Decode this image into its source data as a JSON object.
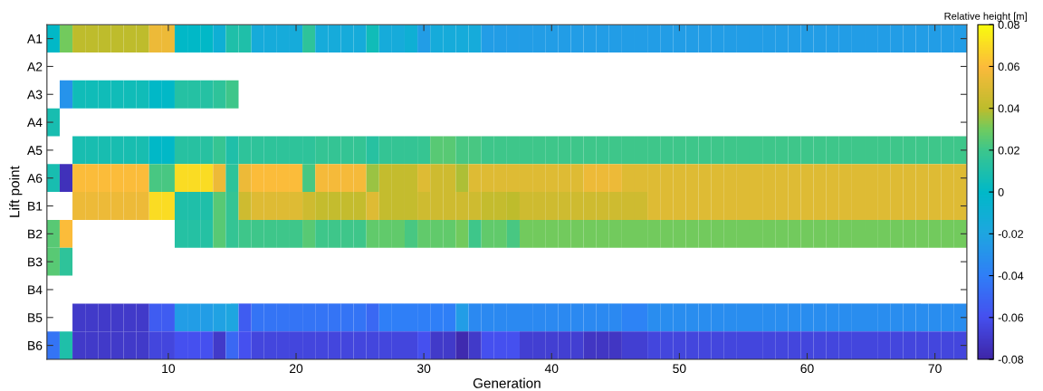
{
  "chart_data": {
    "type": "heatmap",
    "xlabel": "Generation",
    "ylabel": "Lift point",
    "clabel": "Relative height [m]",
    "x": [
      1,
      2,
      3,
      4,
      5,
      6,
      7,
      8,
      9,
      10,
      11,
      12,
      13,
      14,
      15,
      16,
      17,
      18,
      19,
      20,
      21,
      22,
      23,
      24,
      25,
      26,
      27,
      28,
      29,
      30,
      31,
      32,
      33,
      34,
      35,
      36,
      37,
      38,
      39,
      40,
      41,
      42,
      43,
      44,
      45,
      46,
      47,
      48,
      49,
      50,
      51,
      52,
      53,
      54,
      55,
      56,
      57,
      58,
      59,
      60,
      61,
      62,
      63,
      64,
      65,
      66,
      67,
      68,
      69,
      70,
      71,
      72
    ],
    "xlim": [
      0.5,
      72.5
    ],
    "xticks": [
      10,
      20,
      30,
      40,
      50,
      60,
      70
    ],
    "y_categories": [
      "A1",
      "A2",
      "A3",
      "A4",
      "A5",
      "A6",
      "B1",
      "B2",
      "B3",
      "B4",
      "B5",
      "B6"
    ],
    "clim": [
      -0.08,
      0.08
    ],
    "cticks": [
      -0.08,
      -0.06,
      -0.04,
      -0.02,
      0,
      0.02,
      0.04,
      0.06,
      0.08
    ],
    "cells": [
      [
        0,
        0.03,
        0.04,
        0.04,
        0.04,
        0.04,
        0.04,
        0.04,
        0.055,
        0.055,
        0,
        0,
        0,
        -0.01,
        0.01,
        0.01,
        -0.015,
        -0.015,
        -0.015,
        -0.015,
        0.015,
        -0.015,
        -0.015,
        -0.015,
        -0.015,
        0.005,
        -0.015,
        -0.015,
        -0.01,
        -0.025,
        -0.015,
        -0.015,
        -0.015,
        -0.015,
        -0.025,
        -0.025,
        -0.025,
        -0.025,
        -0.025,
        -0.025,
        -0.025,
        -0.025,
        -0.025,
        -0.025,
        -0.025,
        -0.025,
        -0.025,
        -0.025,
        -0.025,
        -0.025,
        -0.025,
        -0.025,
        -0.025,
        -0.025,
        -0.025,
        -0.025,
        -0.025,
        -0.025,
        -0.025,
        -0.025,
        -0.025,
        -0.025,
        -0.025,
        -0.025,
        -0.025,
        -0.025,
        -0.025,
        -0.025,
        -0.025,
        -0.025,
        -0.025,
        -0.025
      ],
      [
        null,
        null,
        null,
        null,
        null,
        null,
        null,
        null,
        null,
        null,
        null,
        null,
        null,
        null,
        null,
        null,
        null,
        null,
        null,
        null,
        null,
        null,
        null,
        null,
        null,
        null,
        null,
        null,
        null,
        null,
        null,
        null,
        null,
        null,
        null,
        null,
        null,
        null,
        null,
        null,
        null,
        null,
        null,
        null,
        null,
        null,
        null,
        null,
        null,
        null,
        null,
        null,
        null,
        null,
        null,
        null,
        null,
        null,
        null,
        null,
        null,
        null,
        null,
        null,
        null,
        null,
        null,
        null,
        null,
        null,
        null,
        null
      ],
      [
        null,
        -0.03,
        0.005,
        0.005,
        0.005,
        0.005,
        0.005,
        0.005,
        0,
        0,
        0.012,
        0.012,
        0.012,
        0.015,
        0.02,
        null,
        null,
        null,
        null,
        null,
        null,
        null,
        null,
        null,
        null,
        null,
        null,
        null,
        null,
        null,
        null,
        null,
        null,
        null,
        null,
        null,
        null,
        null,
        null,
        null,
        null,
        null,
        null,
        null,
        null,
        null,
        null,
        null,
        null,
        null,
        null,
        null,
        null,
        null,
        null,
        null,
        null,
        null,
        null,
        null,
        null,
        null,
        null,
        null,
        null,
        null,
        null,
        null,
        null,
        null,
        null,
        null
      ],
      [
        0.008,
        null,
        null,
        null,
        null,
        null,
        null,
        null,
        null,
        null,
        null,
        null,
        null,
        null,
        null,
        null,
        null,
        null,
        null,
        null,
        null,
        null,
        null,
        null,
        null,
        null,
        null,
        null,
        null,
        null,
        null,
        null,
        null,
        null,
        null,
        null,
        null,
        null,
        null,
        null,
        null,
        null,
        null,
        null,
        null,
        null,
        null,
        null,
        null,
        null,
        null,
        null,
        null,
        null,
        null,
        null,
        null,
        null,
        null,
        null,
        null,
        null,
        null,
        null,
        null,
        null,
        null,
        null,
        null,
        null,
        null,
        null
      ],
      [
        null,
        null,
        0.008,
        0.008,
        0.008,
        0.008,
        0.008,
        0.008,
        0,
        0,
        0.013,
        0.013,
        0.013,
        0.018,
        0.01,
        0.015,
        0.015,
        0.015,
        0.015,
        0.015,
        0.015,
        0.017,
        0.017,
        0.017,
        0.017,
        0.013,
        0.017,
        0.017,
        0.017,
        0.018,
        0.025,
        0.025,
        0.022,
        0.022,
        0.02,
        0.02,
        0.02,
        0.02,
        0.02,
        0.02,
        0.02,
        0.02,
        0.02,
        0.02,
        0.02,
        0.02,
        0.02,
        0.02,
        0.02,
        0.02,
        0.02,
        0.02,
        0.02,
        0.02,
        0.02,
        0.02,
        0.02,
        0.02,
        0.02,
        0.02,
        0.02,
        0.02,
        0.02,
        0.02,
        0.02,
        0.02,
        0.02,
        0.02,
        0.02,
        0.02,
        0.02,
        0.02
      ],
      [
        0.008,
        -0.075,
        0.06,
        0.06,
        0.06,
        0.06,
        0.06,
        0.06,
        0.022,
        0.022,
        0.07,
        0.07,
        0.07,
        0.055,
        0.015,
        0.055,
        0.06,
        0.06,
        0.06,
        0.06,
        0.022,
        0.058,
        0.058,
        0.058,
        0.058,
        0.035,
        0.042,
        0.042,
        0.042,
        0.05,
        0.045,
        0.045,
        0.038,
        0.05,
        0.05,
        0.05,
        0.05,
        0.05,
        0.05,
        0.05,
        0.05,
        0.05,
        0.055,
        0.055,
        0.055,
        0.05,
        0.05,
        0.05,
        0.05,
        0.05,
        0.05,
        0.05,
        0.05,
        0.05,
        0.05,
        0.05,
        0.05,
        0.05,
        0.05,
        0.05,
        0.05,
        0.05,
        0.05,
        0.05,
        0.05,
        0.05,
        0.05,
        0.05,
        0.05,
        0.05,
        0.05,
        0.05
      ],
      [
        null,
        null,
        0.055,
        0.055,
        0.055,
        0.055,
        0.055,
        0.055,
        0.07,
        0.07,
        0.01,
        0.01,
        0.01,
        0.025,
        0.017,
        0.045,
        0.05,
        0.05,
        0.05,
        0.05,
        0.045,
        0.042,
        0.042,
        0.042,
        0.042,
        0.05,
        0.042,
        0.042,
        0.042,
        0.045,
        0.045,
        0.045,
        0.045,
        0.045,
        0.042,
        0.042,
        0.04,
        0.045,
        0.045,
        0.045,
        0.045,
        0.045,
        0.045,
        0.045,
        0.045,
        0.045,
        0.045,
        0.05,
        0.05,
        0.05,
        0.05,
        0.05,
        0.05,
        0.05,
        0.05,
        0.05,
        0.05,
        0.05,
        0.05,
        0.05,
        0.05,
        0.05,
        0.05,
        0.05,
        0.05,
        0.05,
        0.05,
        0.05,
        0.05,
        0.05,
        0.05,
        0.05
      ],
      [
        0.025,
        0.06,
        null,
        null,
        null,
        null,
        null,
        null,
        null,
        null,
        0.012,
        0.012,
        0.012,
        0.025,
        0.017,
        0.02,
        0.02,
        0.02,
        0.02,
        0.02,
        0.025,
        0.02,
        0.02,
        0.02,
        0.02,
        0.027,
        0.027,
        0.027,
        0.022,
        0.027,
        0.027,
        0.027,
        0.03,
        0.02,
        0.027,
        0.027,
        0.022,
        0.03,
        0.03,
        0.03,
        0.03,
        0.03,
        0.03,
        0.03,
        0.03,
        0.03,
        0.03,
        0.03,
        0.03,
        0.03,
        0.03,
        0.03,
        0.03,
        0.03,
        0.03,
        0.03,
        0.03,
        0.03,
        0.03,
        0.03,
        0.03,
        0.03,
        0.03,
        0.03,
        0.03,
        0.03,
        0.03,
        0.03,
        0.03,
        0.03,
        0.03,
        0.03
      ],
      [
        0.025,
        0.015,
        null,
        null,
        null,
        null,
        null,
        null,
        null,
        null,
        null,
        null,
        null,
        null,
        null,
        null,
        null,
        null,
        null,
        null,
        null,
        null,
        null,
        null,
        null,
        null,
        null,
        null,
        null,
        null,
        null,
        null,
        null,
        null,
        null,
        null,
        null,
        null,
        null,
        null,
        null,
        null,
        null,
        null,
        null,
        null,
        null,
        null,
        null,
        null,
        null,
        null,
        null,
        null,
        null,
        null,
        null,
        null,
        null,
        null,
        null,
        null,
        null,
        null,
        null,
        null,
        null,
        null,
        null,
        null,
        null,
        null
      ],
      [
        null,
        null,
        null,
        null,
        null,
        null,
        null,
        null,
        null,
        null,
        null,
        null,
        null,
        null,
        null,
        null,
        null,
        null,
        null,
        null,
        null,
        null,
        null,
        null,
        null,
        null,
        null,
        null,
        null,
        null,
        null,
        null,
        null,
        null,
        null,
        null,
        null,
        null,
        null,
        null,
        null,
        null,
        null,
        null,
        null,
        null,
        null,
        null,
        null,
        null,
        null,
        null,
        null,
        null,
        null,
        null,
        null,
        null,
        null,
        null,
        null,
        null,
        null,
        null,
        null,
        null,
        null,
        null,
        null,
        null,
        null,
        null
      ],
      [
        null,
        null,
        -0.07,
        -0.07,
        -0.07,
        -0.07,
        -0.07,
        -0.07,
        -0.055,
        -0.055,
        -0.025,
        -0.025,
        -0.025,
        -0.022,
        -0.02,
        -0.055,
        -0.045,
        -0.045,
        -0.045,
        -0.045,
        -0.045,
        -0.045,
        -0.045,
        -0.045,
        -0.045,
        -0.05,
        -0.04,
        -0.04,
        -0.04,
        -0.04,
        -0.04,
        -0.04,
        -0.025,
        -0.035,
        -0.035,
        -0.035,
        -0.035,
        -0.035,
        -0.035,
        -0.035,
        -0.035,
        -0.035,
        -0.035,
        -0.035,
        -0.035,
        -0.038,
        -0.038,
        -0.033,
        -0.033,
        -0.033,
        -0.033,
        -0.033,
        -0.033,
        -0.033,
        -0.033,
        -0.033,
        -0.033,
        -0.033,
        -0.033,
        -0.033,
        -0.033,
        -0.033,
        -0.033,
        -0.033,
        -0.033,
        -0.033,
        -0.033,
        -0.033,
        -0.033,
        -0.033,
        -0.033,
        -0.033
      ],
      [
        -0.045,
        0.01,
        -0.07,
        -0.07,
        -0.07,
        -0.07,
        -0.07,
        -0.07,
        -0.065,
        -0.065,
        -0.06,
        -0.06,
        -0.06,
        -0.07,
        -0.05,
        -0.06,
        -0.065,
        -0.065,
        -0.065,
        -0.065,
        -0.065,
        -0.065,
        -0.065,
        -0.065,
        -0.065,
        -0.065,
        -0.065,
        -0.065,
        -0.065,
        -0.06,
        -0.07,
        -0.07,
        -0.078,
        -0.07,
        -0.06,
        -0.06,
        -0.06,
        -0.068,
        -0.068,
        -0.068,
        -0.068,
        -0.068,
        -0.072,
        -0.072,
        -0.072,
        -0.068,
        -0.068,
        -0.065,
        -0.065,
        -0.065,
        -0.065,
        -0.065,
        -0.065,
        -0.065,
        -0.065,
        -0.065,
        -0.065,
        -0.065,
        -0.065,
        -0.065,
        -0.065,
        -0.065,
        -0.065,
        -0.065,
        -0.065,
        -0.065,
        -0.065,
        -0.065,
        -0.065,
        -0.065,
        -0.065,
        -0.065
      ]
    ]
  }
}
